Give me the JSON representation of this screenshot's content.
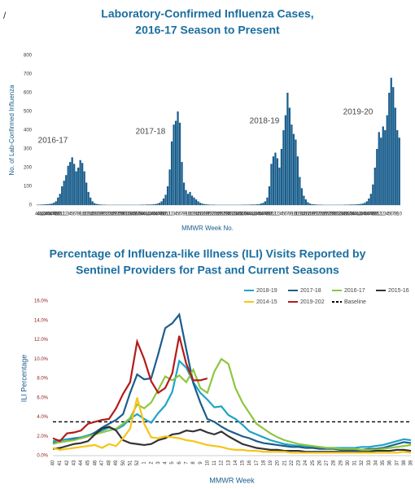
{
  "page_mark": "/",
  "chart_data": [
    {
      "type": "bar",
      "title": [
        "Laboratory-Confirmed Influenza Cases,",
        "2016-17 Season to Present"
      ],
      "y_label": "No. of Lab-Confirmed Influenza",
      "x_label": "MMWR Week No.",
      "annotations": [
        "2016-17",
        "2017-18",
        "2018-19",
        "2019-20"
      ],
      "color": "#1a5e8c",
      "ylim": [
        0,
        800
      ],
      "yticks": [
        0,
        100,
        200,
        300,
        400,
        500,
        600,
        700,
        800
      ],
      "categories": [
        "40",
        "41",
        "42",
        "43",
        "44",
        "45",
        "46",
        "47",
        "48",
        "49",
        "50",
        "51",
        "52",
        "1",
        "2",
        "3",
        "4",
        "5",
        "6",
        "7",
        "8",
        "9",
        "10",
        "11",
        "12",
        "13",
        "14",
        "15",
        "16",
        "17",
        "18",
        "19",
        "20",
        "21",
        "22",
        "23",
        "24",
        "25",
        "26",
        "27",
        "28",
        "29",
        "30",
        "31",
        "32",
        "33",
        "34",
        "35",
        "36",
        "37",
        "38",
        "39",
        "40",
        "41",
        "42",
        "43",
        "44",
        "45",
        "46",
        "47",
        "48",
        "49",
        "50",
        "51",
        "52",
        "1",
        "2",
        "3",
        "4",
        "5",
        "6",
        "7",
        "8",
        "9",
        "10",
        "11",
        "12",
        "13",
        "14",
        "15",
        "16",
        "17",
        "18",
        "19",
        "20",
        "21",
        "22",
        "23",
        "24",
        "25",
        "26",
        "27",
        "28",
        "29",
        "30",
        "31",
        "32",
        "33",
        "34",
        "35",
        "36",
        "37",
        "38",
        "39",
        "40",
        "41",
        "42",
        "43",
        "44",
        "45",
        "46",
        "47",
        "48",
        "49",
        "50",
        "51",
        "52",
        "1",
        "2",
        "3",
        "4",
        "5",
        "6",
        "7",
        "8",
        "9",
        "10",
        "11",
        "12",
        "13",
        "14",
        "15",
        "16",
        "17",
        "18",
        "19",
        "20",
        "21",
        "22",
        "23",
        "24",
        "25",
        "26",
        "27",
        "28",
        "29",
        "30",
        "31",
        "32",
        "33",
        "34",
        "35",
        "36",
        "37",
        "38",
        "39",
        "40",
        "41",
        "42",
        "43",
        "44",
        "45",
        "46",
        "47",
        "48",
        "49",
        "50",
        "51",
        "52",
        "1",
        "2",
        "3",
        "4",
        "5",
        "6",
        "7",
        "8",
        "9",
        "10"
      ],
      "values": [
        2,
        2,
        3,
        3,
        4,
        5,
        6,
        8,
        12,
        20,
        40,
        60,
        100,
        130,
        160,
        210,
        230,
        255,
        220,
        180,
        200,
        240,
        225,
        180,
        120,
        70,
        40,
        20,
        10,
        6,
        4,
        3,
        2,
        2,
        1,
        1,
        1,
        1,
        1,
        1,
        1,
        1,
        1,
        1,
        1,
        1,
        1,
        1,
        1,
        1,
        1,
        2,
        2,
        2,
        3,
        3,
        3,
        4,
        5,
        8,
        12,
        20,
        35,
        55,
        100,
        190,
        340,
        430,
        450,
        500,
        440,
        230,
        120,
        80,
        60,
        70,
        50,
        40,
        30,
        20,
        12,
        8,
        5,
        4,
        3,
        2,
        2,
        2,
        1,
        1,
        1,
        1,
        1,
        1,
        1,
        1,
        1,
        1,
        1,
        1,
        1,
        2,
        2,
        2,
        2,
        3,
        3,
        3,
        4,
        5,
        8,
        12,
        20,
        40,
        100,
        220,
        260,
        280,
        250,
        200,
        300,
        400,
        480,
        600,
        520,
        430,
        380,
        350,
        260,
        150,
        90,
        50,
        30,
        15,
        8,
        5,
        4,
        3,
        2,
        2,
        2,
        1,
        1,
        1,
        1,
        1,
        1,
        1,
        1,
        1,
        1,
        2,
        2,
        2,
        3,
        3,
        3,
        4,
        5,
        6,
        8,
        12,
        20,
        35,
        60,
        110,
        200,
        300,
        390,
        360,
        420,
        400,
        480,
        600,
        680,
        630,
        520,
        400,
        360
      ]
    },
    {
      "type": "line",
      "title": [
        "Percentage of Influenza-like Illness (ILI) Visits Reported by",
        "Sentinel Providers for Past and Current Seasons"
      ],
      "y_label": "ILI Percentage",
      "x_label": "MMWR Week",
      "ylim": [
        0,
        16
      ],
      "yticks": [
        {
          "value": 0,
          "label": "0.0%"
        },
        {
          "value": 2,
          "label": "2.0%"
        },
        {
          "value": 4,
          "label": "4.0%"
        },
        {
          "value": 6,
          "label": "6.0%"
        },
        {
          "value": 8,
          "label": "8.0%"
        },
        {
          "value": 10,
          "label": "10.0%"
        },
        {
          "value": 12,
          "label": "12.0%"
        },
        {
          "value": 14,
          "label": "14.0%"
        },
        {
          "value": 16,
          "label": "16.0%"
        }
      ],
      "categories": [
        "40",
        "41",
        "42",
        "43",
        "44",
        "45",
        "46",
        "47",
        "48",
        "49",
        "50",
        "51",
        "52",
        "1",
        "2",
        "3",
        "4",
        "5",
        "6",
        "7",
        "8",
        "9",
        "10",
        "11",
        "12",
        "13",
        "14",
        "15",
        "16",
        "17",
        "18",
        "19",
        "20",
        "21",
        "22",
        "23",
        "24",
        "25",
        "26",
        "27",
        "28",
        "29",
        "30",
        "31",
        "32",
        "33",
        "34",
        "35",
        "36",
        "37",
        "38",
        "39"
      ],
      "series": [
        {
          "name": "2018-19",
          "color": "#1fa3c9",
          "values": [
            1.5,
            1.6,
            1.7,
            1.8,
            1.9,
            2.1,
            2.3,
            2.6,
            2.9,
            2.7,
            3.1,
            3.8,
            4.3,
            3.8,
            3.4,
            4.4,
            5.2,
            6.6,
            9.8,
            9.1,
            7.6,
            6.5,
            5.8,
            5.0,
            5.1,
            4.2,
            3.8,
            3.2,
            2.5,
            2.2,
            1.9,
            1.6,
            1.4,
            1.2,
            1.1,
            1.0,
            1.0,
            0.9,
            0.9,
            0.8,
            0.8,
            0.8,
            0.8,
            0.8,
            0.9,
            0.9,
            1.0,
            1.1,
            1.3,
            1.5,
            1.7,
            1.6
          ]
        },
        {
          "name": "2017-18",
          "color": "#1a5e8c",
          "values": [
            1.3,
            1.4,
            1.5,
            1.7,
            1.8,
            2.0,
            2.4,
            2.9,
            3.3,
            3.7,
            4.3,
            6.5,
            8.4,
            7.9,
            8.0,
            10.5,
            13.2,
            13.7,
            14.6,
            11.0,
            7.5,
            5.5,
            3.8,
            3.5,
            3.0,
            2.6,
            2.3,
            2.0,
            1.8,
            1.5,
            1.3,
            1.2,
            1.1,
            1.0,
            0.9,
            0.9,
            0.8,
            0.8,
            0.7,
            0.7,
            0.7,
            0.6,
            0.6,
            0.6,
            0.6,
            0.7,
            0.7,
            0.8,
            1.0,
            1.2,
            1.4,
            1.3
          ]
        },
        {
          "name": "2016-17",
          "color": "#8dc63f",
          "values": [
            1.2,
            1.4,
            1.5,
            1.6,
            1.8,
            2.0,
            2.2,
            2.4,
            2.6,
            2.8,
            3.3,
            3.9,
            5.3,
            4.9,
            5.5,
            6.8,
            8.2,
            7.8,
            8.3,
            7.6,
            8.9,
            7.0,
            6.5,
            8.7,
            10.0,
            9.5,
            7.0,
            5.5,
            4.4,
            3.3,
            2.8,
            2.3,
            1.9,
            1.6,
            1.4,
            1.2,
            1.1,
            1.0,
            0.9,
            0.8,
            0.8,
            0.7,
            0.7,
            0.7,
            0.6,
            0.6,
            0.6,
            0.7,
            0.8,
            0.9,
            1.0,
            1.1
          ]
        },
        {
          "name": "2015-16",
          "color": "#333333",
          "values": [
            0.7,
            0.8,
            1.0,
            1.2,
            1.3,
            1.5,
            2.2,
            2.8,
            3.0,
            2.6,
            1.6,
            1.3,
            1.2,
            1.1,
            1.2,
            1.6,
            1.8,
            2.2,
            2.3,
            2.6,
            2.5,
            2.7,
            2.4,
            2.2,
            2.5,
            2.0,
            1.6,
            1.2,
            1.0,
            0.8,
            0.7,
            0.6,
            0.6,
            0.5,
            0.5,
            0.5,
            0.4,
            0.4,
            0.4,
            0.4,
            0.4,
            0.4,
            0.4,
            0.4,
            0.4,
            0.4,
            0.5,
            0.5,
            0.5,
            0.6,
            0.6,
            0.5
          ]
        },
        {
          "name": "2014-15",
          "color": "#f5c518",
          "values": [
            0.8,
            0.6,
            0.7,
            0.8,
            0.9,
            1.0,
            1.1,
            0.8,
            1.2,
            1.0,
            1.8,
            2.8,
            6.0,
            3.3,
            1.9,
            1.8,
            2.0,
            1.9,
            1.8,
            1.6,
            1.5,
            1.3,
            1.1,
            1.0,
            0.9,
            0.7,
            0.6,
            0.6,
            0.5,
            0.5,
            0.4,
            0.4,
            0.4,
            0.4,
            0.3,
            0.3,
            0.3,
            0.3,
            0.3,
            0.3,
            0.3,
            0.3,
            0.3,
            0.3,
            0.3,
            0.3,
            0.3,
            0.3,
            0.3,
            0.3,
            0.4,
            0.3
          ]
        },
        {
          "name": "2019-202",
          "color": "#b31b1b",
          "values": [
            1.8,
            1.5,
            2.3,
            2.4,
            2.6,
            3.3,
            3.5,
            3.7,
            3.8,
            4.9,
            6.4,
            7.6,
            11.8,
            10.0,
            7.7,
            6.5,
            7.0,
            8.5,
            12.4,
            9.5,
            7.8,
            7.8,
            8.0,
            null,
            null,
            null,
            null,
            null,
            null,
            null,
            null,
            null,
            null,
            null,
            null,
            null,
            null,
            null,
            null,
            null,
            null,
            null,
            null,
            null,
            null,
            null,
            null,
            null,
            null,
            null,
            null,
            null
          ]
        }
      ],
      "baseline": {
        "name": "Baseline",
        "value": 3.5,
        "color": "#000000"
      }
    }
  ]
}
